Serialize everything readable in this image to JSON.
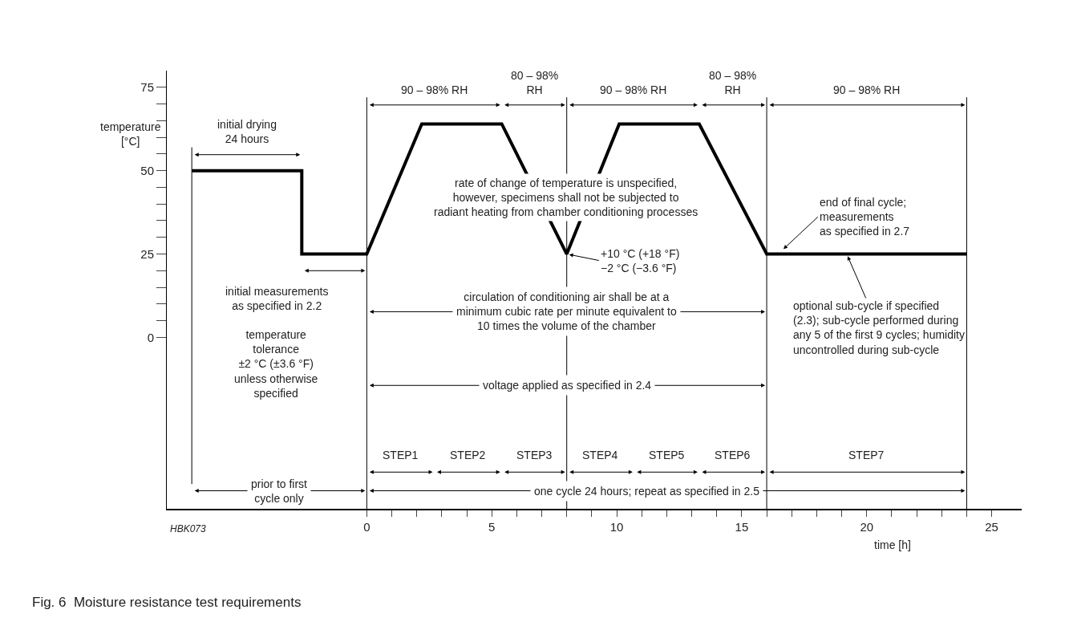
{
  "chart_data": {
    "type": "line",
    "title": "Fig. 6  Moisture resistance test requirements",
    "xlabel": "time [h]",
    "ylabel": "temperature\n[°C]",
    "x": [
      -7,
      -2.6,
      -2.6,
      0,
      2.2,
      5.4,
      8,
      10.1,
      13.3,
      16,
      24
    ],
    "series": [
      {
        "color": "#000000",
        "values": [
          50,
          50,
          25,
          25,
          64,
          64,
          25,
          64,
          64,
          25,
          25
        ]
      }
    ],
    "xlim": [
      -8,
      26.2
    ],
    "ylim": [
      -51.4,
      80
    ],
    "xticks": [
      0,
      {
        "value": 1,
        "label": null
      },
      {
        "value": 2,
        "label": null
      },
      {
        "value": 3,
        "label": null
      },
      {
        "value": 4,
        "label": null
      },
      5,
      {
        "value": 6,
        "label": null
      },
      {
        "value": 7,
        "label": null
      },
      {
        "value": 8,
        "label": null
      },
      {
        "value": 9,
        "label": null
      },
      10,
      {
        "value": 11,
        "label": null
      },
      {
        "value": 12,
        "label": null
      },
      {
        "value": 13,
        "label": null
      },
      {
        "value": 14,
        "label": null
      },
      15,
      {
        "value": 16,
        "label": null
      },
      {
        "value": 17,
        "label": null
      },
      {
        "value": 18,
        "label": null
      },
      {
        "value": 19,
        "label": null
      },
      20,
      {
        "value": 21,
        "label": null
      },
      {
        "value": 22,
        "label": null
      },
      {
        "value": 23,
        "label": null
      },
      {
        "value": 24,
        "label": null
      },
      25
    ],
    "yticks": [
      0,
      {
        "value": 5,
        "label": null
      },
      {
        "value": 10,
        "label": null
      },
      {
        "value": 15,
        "label": null
      },
      {
        "value": 20,
        "label": null
      },
      25,
      {
        "value": 30,
        "label": null
      },
      {
        "value": 35,
        "label": null
      },
      {
        "value": 40,
        "label": null
      },
      {
        "value": 45,
        "label": null
      },
      50,
      {
        "value": 55,
        "label": null
      },
      {
        "value": 60,
        "label": null
      },
      {
        "value": 65,
        "label": null
      },
      {
        "value": 70,
        "label": null
      },
      75
    ],
    "marker": "none",
    "line_style": "solid",
    "ref_lines": [
      {
        "axis": "x",
        "value": -7
      },
      {
        "axis": "x",
        "value": 0
      },
      {
        "axis": "x",
        "value": 8
      },
      {
        "axis": "x",
        "value": 16
      },
      {
        "axis": "x",
        "value": 24
      }
    ],
    "annotations": [
      "rate of change of temperature is unspecified,\nhowever, specimens shall not be subjected to\nradiant heating from chamber conditioning processes",
      {
        "text": "+10 °C (+18 °F)\n−2 °C (−3.6 °F)",
        "x": 8,
        "y": 25
      },
      {
        "text": "end of final cycle;\nmeasurements\nas specified in 2.7",
        "x": 16.6,
        "y": 26
      },
      {
        "text": "optional sub-cycle if specified\n(2.3); sub-cycle performed during\nany 5 of the first 9 cycles; humidity\nuncontrolled during sub-cycle",
        "x": 19.2,
        "y": 25
      },
      "temperature\ntolerance\n±2 °C (±3.6 °F)\nunless otherwise\nspecified",
      "HBK073",
      "initial drying\n24 hours",
      "90 – 98% RH",
      "80 – 98%\nRH",
      "90 – 98% RH",
      "80 – 98%\nRH",
      "90 – 98% RH",
      "initial measurements\nas specified in 2.2",
      "circulation of conditioning air shall be at a\nminimum cubic rate per minute equivalent to\n10 times the volume of the chamber",
      "voltage applied as specified in 2.4",
      "STEP1",
      "STEP2",
      "STEP3",
      "STEP4",
      "STEP5",
      "STEP6",
      "STEP7",
      "one cycle 24 hours; repeat as specified in 2.5",
      "prior to first\ncycle only"
    ]
  }
}
